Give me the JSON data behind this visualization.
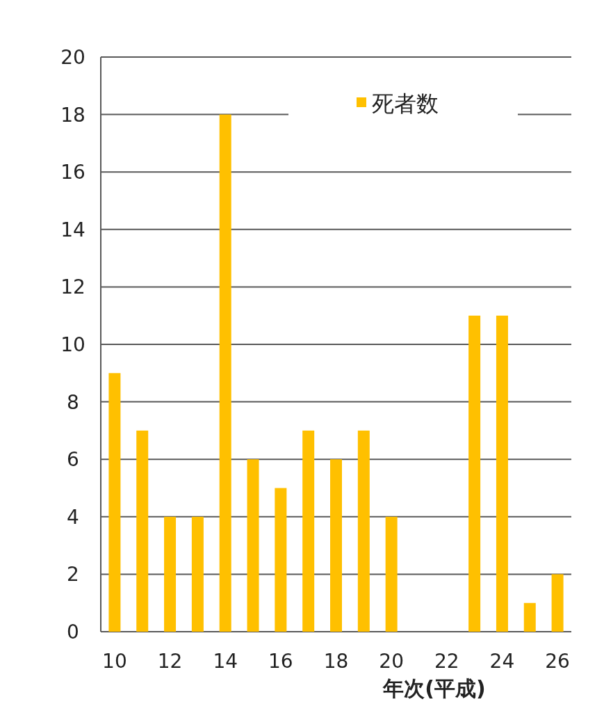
{
  "chart_data": {
    "type": "bar",
    "xlabel": "年次(平成)",
    "categories": [
      "10",
      null,
      "12",
      null,
      "14",
      null,
      "16",
      null,
      "18",
      null,
      "20",
      null,
      "22",
      null,
      "24",
      null,
      "26"
    ],
    "series": [
      {
        "name": "死者数",
        "color": "#ffc000",
        "values": [
          9,
          7,
          4,
          4,
          18,
          6,
          5,
          7,
          6,
          7,
          4,
          0,
          0,
          11,
          11,
          1,
          2
        ]
      }
    ],
    "ylim": [
      0,
      20
    ],
    "yticks": [
      0,
      2,
      4,
      6,
      8,
      10,
      12,
      14,
      16,
      18,
      20
    ],
    "grid": "y",
    "legend": "top right"
  }
}
